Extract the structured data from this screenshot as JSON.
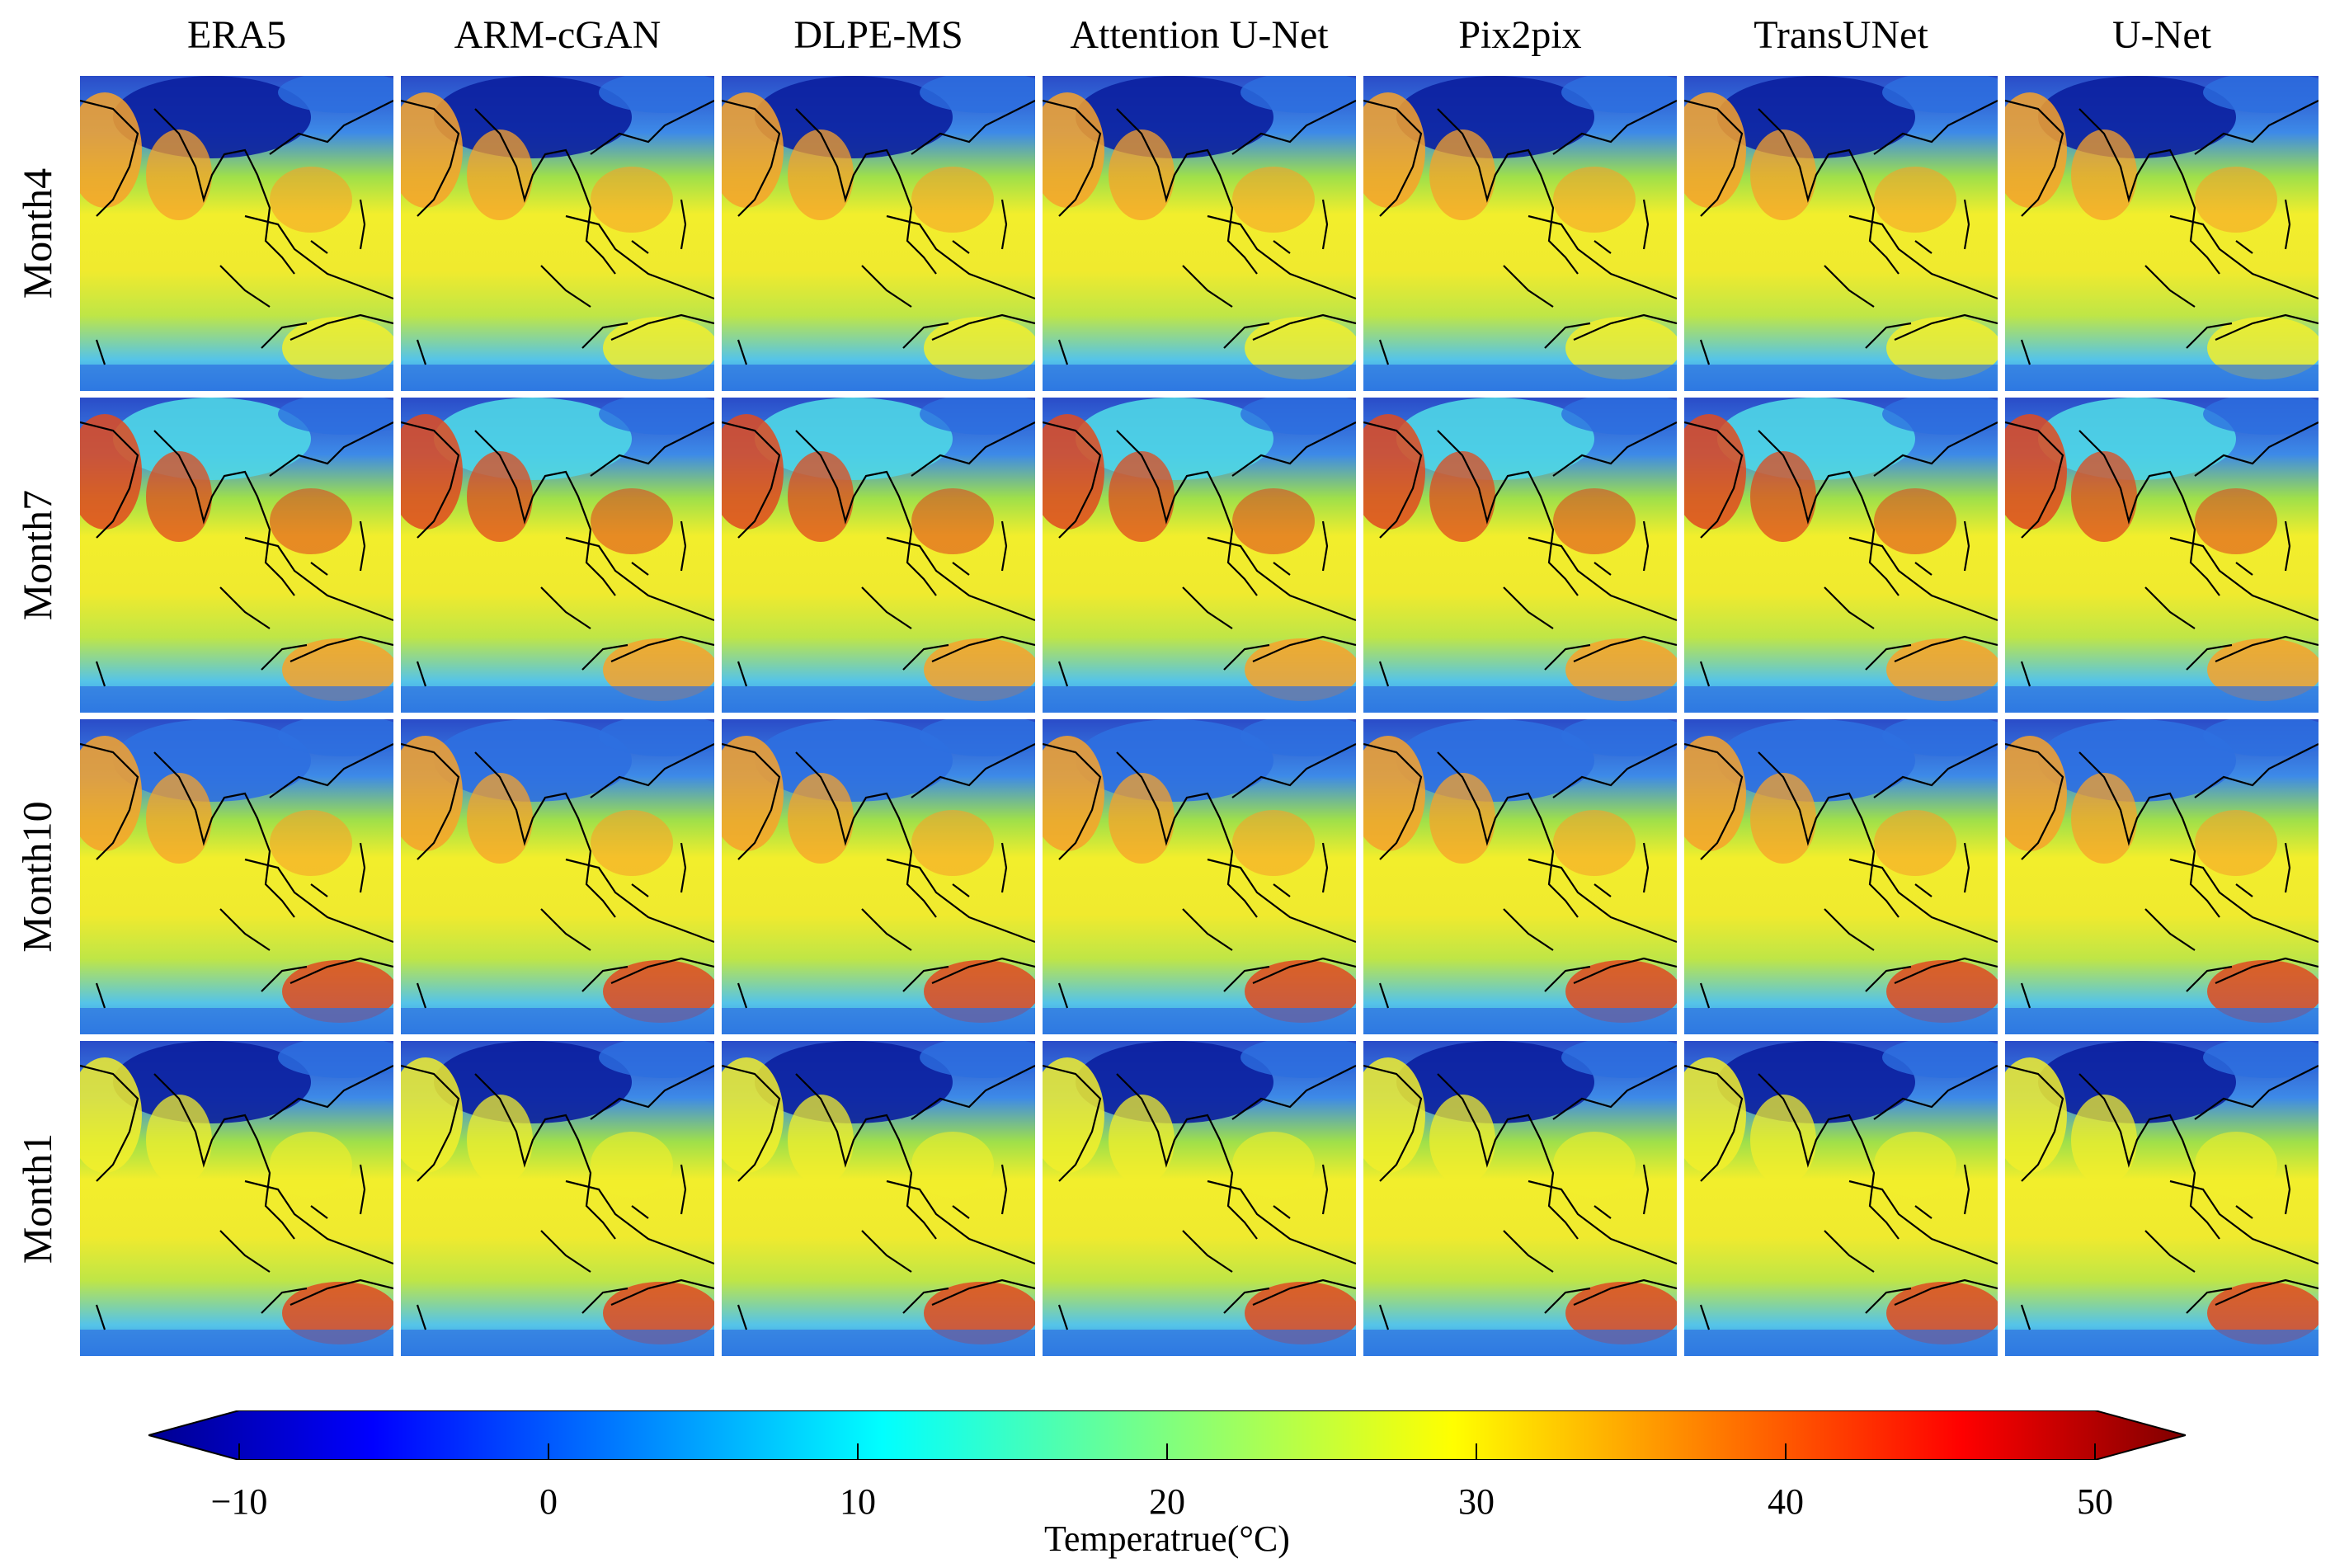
{
  "columns": [
    "ERA5",
    "ARM-cGAN",
    "DLPE-MS",
    "Attention U-Net",
    "Pix2pix",
    "TransUNet",
    "U-Net"
  ],
  "rows": [
    "Month4",
    "Month7",
    "Month10",
    "Month1"
  ],
  "colorbar": {
    "label": "Temperatrue(°C)",
    "ticks": [
      "−10",
      "0",
      "10",
      "20",
      "30",
      "40",
      "50"
    ],
    "min": -10,
    "max": 50,
    "colormap": "jet"
  },
  "colors": {
    "cold_deep": "#0b1f9e",
    "cold": "#2d6fe0",
    "cool": "#4fd6e6",
    "mild": "#f2ee2c",
    "warm": "#f7a22a",
    "hot": "#e04a1e"
  }
}
